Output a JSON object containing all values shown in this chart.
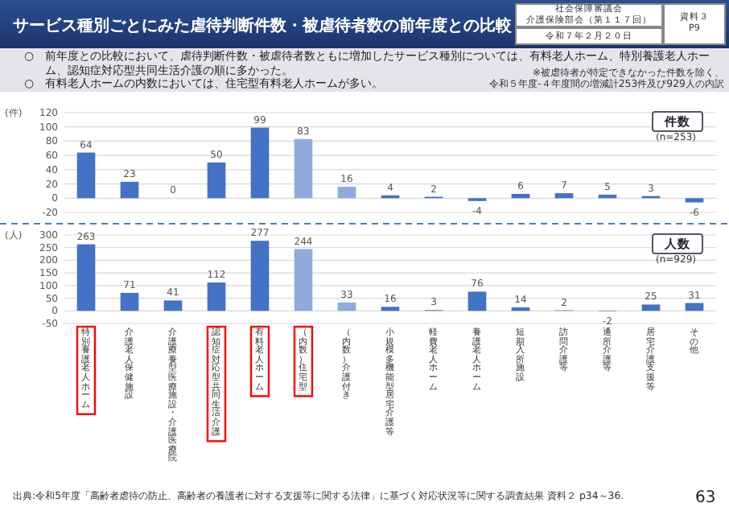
{
  "chart_data": [
    {
      "type": "bar",
      "title": "サービス種別ごとにみた虐待判断件数・被虐待者数の前年度との比較",
      "subtitle": "件数",
      "ylabel": "(件)",
      "annotations": [
        "社会保障審議会",
        "介護保険部会（第１１７回）",
        "令和７年２月２０日",
        "資料３",
        "P9",
        "○　前年度との比較において、虐待判断件数・被虐待者数ともに増加したサービス種別については、有料老人ホーム、特別養護老人ホーム、認知症対応型共同生活介護の順に多かった。",
        "○　有料老人ホームの内数においては、住宅型有料老人ホームが多い。",
        "※被虐待者が特定できなかった件数を除く、",
        "令和５年度-４年度間の増減計253件及び929人の内訳",
        "(n=253)"
      ],
      "categories": [
        null,
        null,
        null,
        null,
        null,
        null,
        null,
        null,
        null,
        null,
        null,
        null,
        null,
        null,
        null
      ],
      "values": [
        64,
        23,
        0,
        50,
        99,
        83,
        16,
        4,
        2,
        -4,
        6,
        7,
        5,
        3,
        -6
      ],
      "colors": [
        "#4472c4",
        "#4472c4",
        "#4472c4",
        "#4472c4",
        "#4472c4",
        "#8faadc",
        "#8faadc",
        "#4472c4",
        "#4472c4",
        "#4472c4",
        "#4472c4",
        "#4472c4",
        "#4472c4",
        "#4472c4",
        "#4472c4"
      ],
      "ylim": [
        -20,
        120
      ],
      "yticks": [
        -20,
        0,
        20,
        40,
        60,
        80,
        100,
        120
      ],
      "grid": "y",
      "data_labels": true,
      "tick_labels": "y"
    },
    {
      "type": "bar",
      "subtitle": "人数",
      "ylabel": "(人)",
      "annotations": [
        "(n=929)",
        "出典:令和5年度「高齢者虐待の防止、高齢者の養護者に対する支援等に関する法律」に基づく対応状況等に関する調査結果 資料２ p34～36.",
        "63"
      ],
      "categories": [
        "特別養護老人ホーム",
        "介護老人保健施設",
        "介護療養型医療施設・介護医療院",
        "認知症対応型共同生活介護",
        "有料老人ホーム",
        "（内数）住宅型",
        "（内数）介護付き",
        "小規模多機能型居宅介護等",
        "軽費老人ホーム",
        "養護老人ホーム",
        "短期入所施設",
        "訪問介護等",
        "通所介護等",
        "居宅介護支援等",
        "その他"
      ],
      "values": [
        263,
        71,
        41,
        112,
        277,
        244,
        33,
        16,
        3,
        76,
        14,
        2,
        -2,
        25,
        31
      ],
      "colors": [
        "#4472c4",
        "#4472c4",
        "#4472c4",
        "#4472c4",
        "#4472c4",
        "#8faadc",
        "#8faadc",
        "#4472c4",
        "#4472c4",
        "#4472c4",
        "#4472c4",
        "#4472c4",
        "#4472c4",
        "#4472c4",
        "#4472c4"
      ],
      "ylim": [
        -50,
        300
      ],
      "yticks": [
        -50,
        0,
        50,
        100,
        150,
        200,
        250,
        300
      ],
      "grid": "y",
      "data_labels": true
    }
  ]
}
